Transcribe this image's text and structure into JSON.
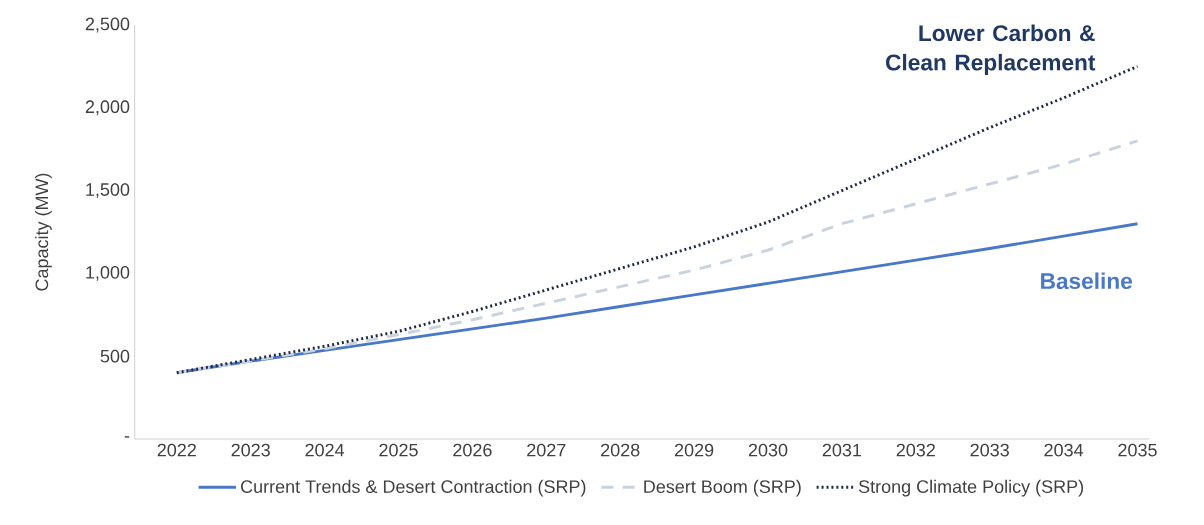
{
  "chart_data": {
    "type": "line",
    "ylabel": "Capacity (MW)",
    "categories": [
      "2022",
      "2023",
      "2024",
      "2025",
      "2026",
      "2027",
      "2028",
      "2029",
      "2030",
      "2031",
      "2032",
      "2033",
      "2034",
      "2035"
    ],
    "series": [
      {
        "name": "Current Trends & Desert Contraction (SRP)",
        "color": "#4a78c8",
        "line_style": "solid",
        "values": [
          400,
          470,
          535,
          600,
          665,
          730,
          800,
          870,
          940,
          1010,
          1080,
          1150,
          1225,
          1300
        ]
      },
      {
        "name": "Desert Boom (SRP)",
        "color": "#c9d3e0",
        "line_style": "dashed",
        "values": [
          400,
          470,
          545,
          630,
          720,
          820,
          920,
          1020,
          1140,
          1300,
          1420,
          1540,
          1660,
          1800
        ]
      },
      {
        "name": "Strong Climate Policy (SRP)",
        "color": "#1f2a44",
        "line_style": "dotted",
        "values": [
          400,
          480,
          560,
          650,
          770,
          900,
          1030,
          1160,
          1310,
          1500,
          1690,
          1880,
          2060,
          2250
        ]
      }
    ],
    "ylim": [
      0,
      2500
    ],
    "yticks": [
      {
        "value": 0,
        "label": "-"
      },
      500,
      {
        "value": 1000,
        "label": "1,000"
      },
      {
        "value": 1500,
        "label": "1,500"
      },
      {
        "value": 2000,
        "label": "2,000"
      },
      {
        "value": 2500,
        "label": "2,500"
      }
    ],
    "annotations": [
      {
        "text": "Lower Carbon & Clean Replacement",
        "x": "2035",
        "y": 2250
      },
      {
        "text": "Baseline",
        "x": "2035",
        "y": 1300
      }
    ],
    "grid": false,
    "legend": "bottom",
    "marker": "none"
  }
}
